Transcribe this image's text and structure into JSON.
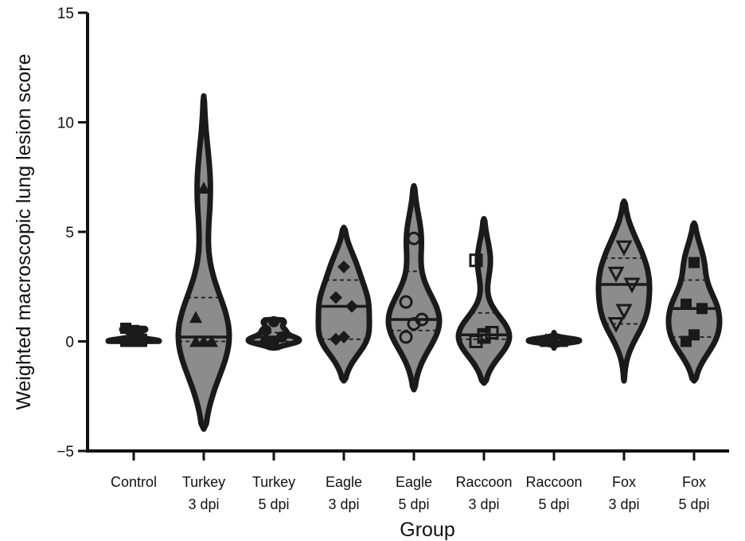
{
  "chart_data": {
    "type": "violin",
    "xlabel": "Group",
    "ylabel": "Weighted macroscopic lung lesion score",
    "ylim": [
      -5,
      15
    ],
    "yticks": [
      {
        "value": -5,
        "label": "−5"
      },
      {
        "value": 0,
        "label": "0"
      },
      {
        "value": 5,
        "label": "5"
      },
      {
        "value": 10,
        "label": "10"
      },
      {
        "value": 15,
        "label": "15"
      }
    ],
    "grid": false,
    "legend": "none",
    "colors": {
      "violin_fill": "#8c8c8c",
      "outline": "#1a1a1a",
      "axis": "#111111"
    },
    "groups": [
      {
        "label_line1": "Control",
        "label_line2": "",
        "min": 0,
        "max": 0.6,
        "median": 0,
        "q1": 0,
        "q3": 0,
        "marker": "square",
        "points": [
          0,
          0,
          0.1,
          0.6,
          0.5,
          0
        ]
      },
      {
        "label_line1": "Turkey",
        "label_line2": "3 dpi",
        "min": -4.0,
        "max": 11.2,
        "median": 0.2,
        "q1": 0,
        "q3": 2.0,
        "marker": "triangle-up",
        "points": [
          0,
          0,
          0,
          1.1,
          7.0
        ]
      },
      {
        "label_line1": "Turkey",
        "label_line2": "5 dpi",
        "min": -0.3,
        "max": 1.0,
        "median": 0.2,
        "q1": 0,
        "q3": 0.4,
        "marker": "circle",
        "points": [
          0,
          0,
          0.2,
          0.5,
          0.9
        ]
      },
      {
        "label_line1": "Eagle",
        "label_line2": "3 dpi",
        "min": -1.8,
        "max": 5.2,
        "median": 1.6,
        "q1": 0.1,
        "q3": 2.8,
        "marker": "diamond",
        "points": [
          0.1,
          0.2,
          1.6,
          2.0,
          3.4
        ]
      },
      {
        "label_line1": "Eagle",
        "label_line2": "5 dpi",
        "min": -2.2,
        "max": 7.1,
        "median": 1.0,
        "q1": 0.5,
        "q3": 3.2,
        "marker": "circle-open",
        "points": [
          0.2,
          0.8,
          1.0,
          1.8,
          4.7
        ]
      },
      {
        "label_line1": "Raccoon",
        "label_line2": "3 dpi",
        "min": -1.9,
        "max": 5.6,
        "median": 0.3,
        "q1": 0.1,
        "q3": 1.3,
        "marker": "square-open",
        "points": [
          0,
          0.2,
          0.4,
          3.7,
          0.3
        ]
      },
      {
        "label_line1": "Raccoon",
        "label_line2": "5 dpi",
        "min": -0.3,
        "max": 0.4,
        "median": 0,
        "q1": -0.05,
        "q3": 0.1,
        "marker": "triangle-up",
        "points": [
          0,
          0,
          0,
          0.1,
          0.1
        ]
      },
      {
        "label_line1": "Fox",
        "label_line2": "3 dpi",
        "min": -1.8,
        "max": 6.4,
        "median": 2.6,
        "q1": 0.8,
        "q3": 3.8,
        "marker": "triangle-down-open",
        "points": [
          0.8,
          1.4,
          2.6,
          3.1,
          4.3
        ]
      },
      {
        "label_line1": "Fox",
        "label_line2": "5 dpi",
        "min": -1.8,
        "max": 5.4,
        "median": 1.5,
        "q1": 0.2,
        "q3": 2.8,
        "marker": "square",
        "points": [
          0,
          0.3,
          1.5,
          1.7,
          3.6
        ]
      }
    ]
  }
}
